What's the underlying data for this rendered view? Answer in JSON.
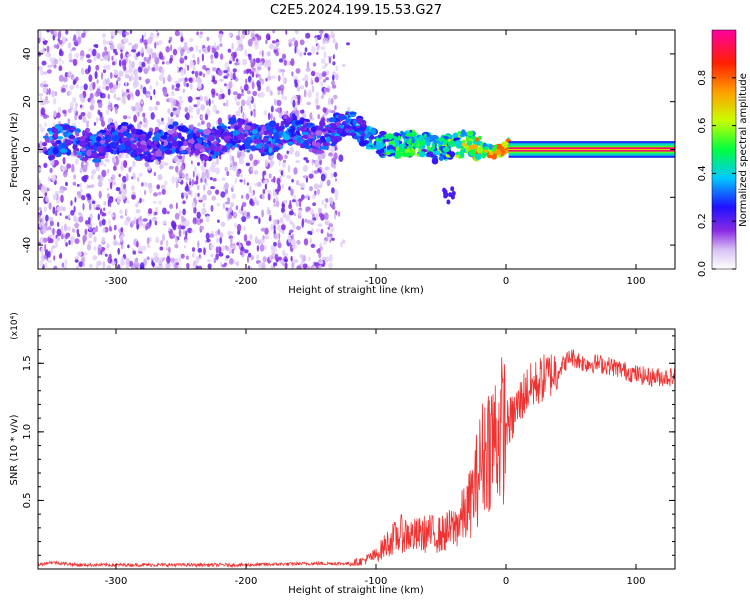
{
  "figure": {
    "title": "C2E5.2024.199.15.53.G27"
  },
  "chart_data": [
    {
      "type": "heatmap",
      "xlabel": "Height of straight line (km)",
      "ylabel": "Frequency (Hz)",
      "xlim": [
        -360,
        130
      ],
      "ylim": [
        -50,
        50
      ],
      "xticks": [
        -300,
        -200,
        -100,
        0,
        100
      ],
      "yticks": [
        -40,
        -20,
        0,
        20,
        40
      ],
      "grid": false,
      "colorbar": {
        "label": "Normalized spectral amplitude",
        "range": [
          0,
          1
        ],
        "ticks": [
          "0.0",
          "0.2",
          "0.4",
          "0.6",
          "0.8"
        ],
        "tick_values": [
          0.0,
          0.2,
          0.4,
          0.6,
          0.8
        ]
      },
      "trace": {
        "noise_region_x": [
          -360,
          -130
        ],
        "ridge": [
          {
            "x": -350,
            "y": 2,
            "amp": 0.35
          },
          {
            "x": -300,
            "y": 3,
            "amp": 0.3
          },
          {
            "x": -250,
            "y": 3,
            "amp": 0.3
          },
          {
            "x": -180,
            "y": 6,
            "amp": 0.35
          },
          {
            "x": -140,
            "y": 7,
            "amp": 0.3
          },
          {
            "x": -120,
            "y": 9,
            "amp": 0.4
          },
          {
            "x": -100,
            "y": 5,
            "amp": 0.45
          },
          {
            "x": -80,
            "y": 0,
            "amp": 0.55
          },
          {
            "x": -60,
            "y": 3,
            "amp": 0.5
          },
          {
            "x": -40,
            "y": 0,
            "amp": 0.6
          },
          {
            "x": -20,
            "y": 1,
            "amp": 0.75
          },
          {
            "x": 0,
            "y": 1,
            "amp": 0.9
          },
          {
            "x": 130,
            "y": 0,
            "amp": 0.95
          }
        ]
      }
    },
    {
      "type": "line",
      "xlabel": "Height of straight line (km)",
      "ylabel": "SNR (10 * v/v)",
      "y_multiplier": "(x10⁴)",
      "xlim": [
        -360,
        130
      ],
      "ylim": [
        0,
        1.75
      ],
      "xticks": [
        -300,
        -200,
        -100,
        0,
        100
      ],
      "yticks": [
        0.5,
        1.0,
        1.5
      ],
      "ytick_labels": [
        "0.5",
        "1.0",
        "1.5"
      ],
      "grid": false,
      "series": [
        {
          "color": "#ee3333",
          "x": [
            -360,
            -350,
            -330,
            -300,
            -250,
            -200,
            -150,
            -120,
            -110,
            -100,
            -90,
            -80,
            -70,
            -60,
            -50,
            -40,
            -30,
            -25,
            -20,
            -15,
            -10,
            -5,
            0,
            5,
            10,
            15,
            20,
            30,
            40,
            50,
            60,
            70,
            80,
            90,
            100,
            110,
            120,
            130
          ],
          "y": [
            0.03,
            0.05,
            0.03,
            0.03,
            0.03,
            0.03,
            0.04,
            0.04,
            0.06,
            0.1,
            0.2,
            0.26,
            0.24,
            0.26,
            0.25,
            0.3,
            0.42,
            0.55,
            0.75,
            0.9,
            0.95,
            1.0,
            1.05,
            1.1,
            1.2,
            1.3,
            1.33,
            1.4,
            1.45,
            1.55,
            1.5,
            1.5,
            1.48,
            1.45,
            1.42,
            1.4,
            1.4,
            1.4
          ]
        }
      ]
    }
  ]
}
